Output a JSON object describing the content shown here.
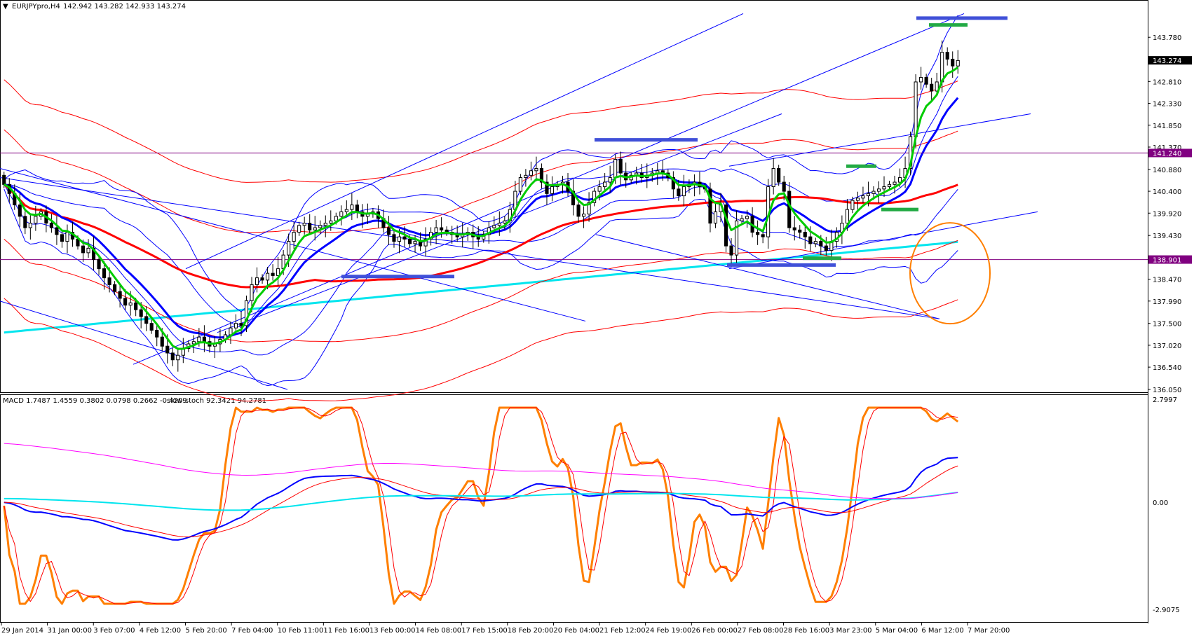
{
  "window": {
    "symbol_title": "EURJPYpro,H4",
    "ohlc": "142.942 143.282 142.933 143.274",
    "indicator_title": "MACD 1.7487 1.4559 0.3802 0.0798 0.2662 -0.4209",
    "indicator_title_2": "slow-stoch 92.3421 94.2781"
  },
  "colors": {
    "background": "#ffffff",
    "grid": "none",
    "bull_candle": "#ffffff",
    "bear_candle": "#000000",
    "ema_fast": "#00cc00",
    "ema_mid": "#0000ff",
    "ma_slow": "#ff0000",
    "ma_long": "#00e5ee",
    "envelope": "#ff0000",
    "bollinger": "#0000ff",
    "support_line": "#800080",
    "trendline": "#0000ff",
    "circle": "#ff7f00",
    "stoch_main": "#ff7f00",
    "stoch_signal": "#ff0000",
    "macd_main": "#0000ff",
    "macd_signal": "#ff0000",
    "macd_cyan": "#00e5ee",
    "macd_magenta": "#ff00ff"
  },
  "chart_data": [
    {
      "type": "candlestick",
      "symbol": "EURJPYpro",
      "timeframe": "H4",
      "ylim": [
        136.05,
        144.26
      ],
      "price_ticks": [
        "143.780",
        "142.810",
        "142.330",
        "141.850",
        "141.370",
        "140.880",
        "140.400",
        "139.920",
        "139.430",
        "138.470",
        "137.990",
        "137.500",
        "137.020",
        "136.540",
        "136.050"
      ],
      "highlight_labels": [
        {
          "value": "143.274",
          "style": "current"
        },
        {
          "value": "141.240",
          "style": "level"
        },
        {
          "value": "138.901",
          "style": "level"
        }
      ],
      "time_labels": [
        "29 Jan 2014",
        "31 Jan 00:00",
        "3 Feb 07:00",
        "4 Feb 12:00",
        "5 Feb 20:00",
        "7 Feb 04:00",
        "10 Feb 11:00",
        "11 Feb 16:00",
        "13 Feb 00:00",
        "14 Feb 08:00",
        "17 Feb 15:00",
        "18 Feb 20:00",
        "20 Feb 04:00",
        "21 Feb 12:00",
        "24 Feb 19:00",
        "26 Feb 00:00",
        "27 Feb 08:00",
        "28 Feb 16:00",
        "3 Mar 23:00",
        "5 Mar 04:00",
        "6 Mar 12:00",
        "7 Mar 20:00"
      ],
      "close": [
        140.55,
        140.35,
        140.1,
        139.85,
        139.6,
        139.7,
        139.85,
        139.95,
        139.7,
        139.6,
        139.45,
        139.3,
        139.5,
        139.35,
        139.2,
        139.05,
        139.15,
        138.9,
        138.7,
        138.5,
        138.35,
        138.2,
        138.05,
        137.9,
        137.95,
        137.8,
        137.65,
        137.5,
        137.35,
        137.2,
        137.0,
        136.85,
        136.7,
        136.8,
        136.95,
        137.05,
        137.1,
        137.2,
        137.1,
        137.0,
        137.05,
        137.15,
        137.25,
        137.4,
        137.5,
        137.45,
        138.0,
        138.35,
        138.5,
        138.45,
        138.6,
        138.55,
        138.7,
        139.0,
        139.3,
        139.5,
        139.65,
        139.7,
        139.55,
        139.6,
        139.65,
        139.7,
        139.75,
        139.85,
        139.95,
        140.0,
        140.1,
        139.95,
        139.85,
        139.9,
        139.95,
        139.8,
        139.6,
        139.45,
        139.3,
        139.4,
        139.35,
        139.25,
        139.3,
        139.2,
        139.35,
        139.5,
        139.6,
        139.55,
        139.5,
        139.45,
        139.4,
        139.45,
        139.5,
        139.4,
        139.35,
        139.45,
        139.6,
        139.65,
        139.7,
        139.75,
        140.0,
        140.4,
        140.7,
        140.75,
        140.85,
        140.9,
        140.6,
        140.35,
        140.5,
        140.55,
        140.6,
        140.4,
        140.1,
        139.85,
        139.9,
        140.15,
        140.4,
        140.5,
        140.6,
        140.7,
        141.1,
        140.8,
        140.65,
        140.75,
        140.8,
        140.7,
        140.75,
        140.8,
        140.85,
        140.8,
        140.7,
        140.45,
        140.3,
        140.5,
        140.55,
        140.6,
        140.5,
        140.45,
        139.7,
        139.95,
        140.1,
        139.2,
        139.0,
        139.75,
        139.8,
        139.85,
        139.5,
        139.45,
        139.4,
        140.5,
        140.9,
        140.6,
        140.4,
        139.6,
        139.55,
        139.5,
        139.4,
        139.25,
        139.3,
        139.2,
        139.1,
        139.3,
        139.5,
        139.7,
        140.0,
        140.2,
        140.25,
        140.3,
        140.35,
        140.4,
        140.45,
        140.5,
        140.55,
        140.6,
        140.7,
        140.9,
        141.6,
        142.8,
        142.9,
        142.75,
        142.6,
        142.8,
        143.45,
        143.3,
        143.15,
        143.27
      ]
    },
    {
      "type": "line",
      "name_label": "MACD / slow-stoch panel",
      "ylim": [
        -2.9075,
        2.7997
      ],
      "price_ticks": [
        "2.7997",
        "0.00",
        "-2.9075"
      ]
    }
  ]
}
